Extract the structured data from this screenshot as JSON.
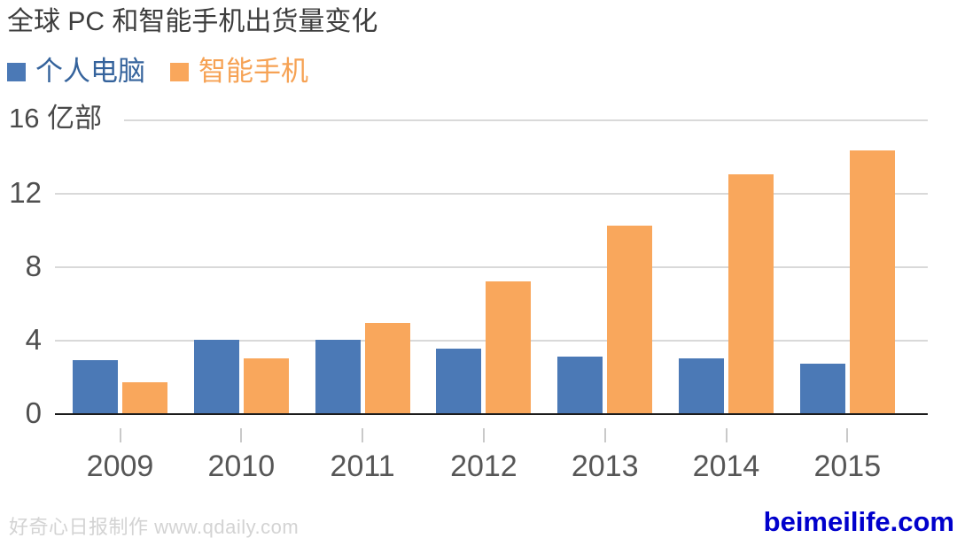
{
  "title": "全球 PC 和智能手机出货量变化",
  "y_axis": {
    "top_label": "16 亿部",
    "ticks": [
      "12",
      "8",
      "4",
      "0"
    ]
  },
  "footer": {
    "left": "好奇心日报制作 www.qdaily.com",
    "right": "beimeilife.com"
  },
  "colors": {
    "pc_bar": "#4b79b6",
    "phone_bar": "#f9a75c",
    "pc_legend_text": "#35639c",
    "phone_legend_text": "#f6a254",
    "watermark": "#0000cc"
  },
  "chart_data": {
    "type": "bar",
    "title": "全球 PC 和智能手机出货量变化",
    "categories": [
      "2009",
      "2010",
      "2011",
      "2012",
      "2013",
      "2014",
      "2015"
    ],
    "series": [
      {
        "name": "个人电脑",
        "color": "#4b79b6",
        "text_color": "#35639c",
        "values": [
          2.9,
          4.0,
          4.0,
          3.5,
          3.1,
          3.0,
          2.7
        ]
      },
      {
        "name": "智能手机",
        "color": "#f9a75c",
        "text_color": "#f6a254",
        "values": [
          1.7,
          3.0,
          4.9,
          7.2,
          10.2,
          13.0,
          14.3
        ]
      }
    ],
    "xlabel": "",
    "ylabel": "亿部",
    "ylim": [
      0,
      16
    ],
    "yticks": [
      0,
      4,
      8,
      12,
      16
    ],
    "grid": true,
    "legend_position": "top-left"
  }
}
